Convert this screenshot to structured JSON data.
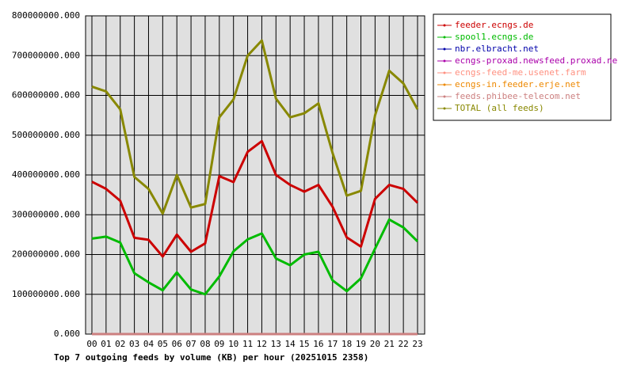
{
  "chart_data": {
    "type": "line",
    "title": "Top 7 outgoing feeds by volume (KB) per hour (20251015 2358)",
    "categories": [
      "00",
      "01",
      "02",
      "03",
      "04",
      "05",
      "06",
      "07",
      "08",
      "09",
      "10",
      "11",
      "12",
      "13",
      "14",
      "15",
      "16",
      "17",
      "18",
      "19",
      "20",
      "21",
      "22",
      "23"
    ],
    "series": [
      {
        "name": "feeder.ecngs.de",
        "color": "#cc0000",
        "values": [
          383000000,
          365000000,
          335000000,
          242000000,
          237000000,
          195000000,
          250000000,
          207000000,
          228000000,
          397000000,
          382000000,
          458000000,
          485000000,
          400000000,
          375000000,
          358000000,
          375000000,
          320000000,
          243000000,
          220000000,
          340000000,
          375000000,
          365000000,
          330000000
        ]
      },
      {
        "name": "spool1.ecngs.de",
        "color": "#00bb00",
        "values": [
          240000000,
          245000000,
          230000000,
          153000000,
          130000000,
          110000000,
          155000000,
          112000000,
          100000000,
          145000000,
          208000000,
          238000000,
          253000000,
          190000000,
          173000000,
          200000000,
          207000000,
          135000000,
          108000000,
          140000000,
          215000000,
          288000000,
          268000000,
          233000000
        ]
      },
      {
        "name": "nbr.elbracht.net",
        "color": "#0000aa",
        "values": [
          0,
          0,
          0,
          0,
          0,
          0,
          0,
          0,
          0,
          0,
          0,
          0,
          0,
          0,
          0,
          0,
          0,
          0,
          0,
          0,
          0,
          0,
          0,
          0
        ]
      },
      {
        "name": "ecngs-proxad.newsfeed.proxad.net",
        "color": "#aa00aa",
        "values": [
          0,
          0,
          0,
          0,
          0,
          0,
          0,
          0,
          0,
          0,
          0,
          0,
          0,
          0,
          0,
          0,
          0,
          0,
          0,
          0,
          0,
          0,
          0,
          0
        ]
      },
      {
        "name": "ecngs-feed-me.usenet.farm",
        "color": "#ff9080",
        "values": [
          0,
          0,
          0,
          0,
          0,
          0,
          0,
          0,
          0,
          0,
          0,
          0,
          0,
          0,
          0,
          0,
          0,
          0,
          0,
          0,
          0,
          0,
          0,
          0
        ]
      },
      {
        "name": "ecngs-in.feeder.erje.net",
        "color": "#ee8800",
        "values": [
          0,
          0,
          0,
          0,
          0,
          0,
          0,
          0,
          0,
          0,
          0,
          0,
          0,
          0,
          0,
          0,
          0,
          0,
          0,
          0,
          0,
          0,
          0,
          0
        ]
      },
      {
        "name": "feeds.phibee-telecom.net",
        "color": "#cc8080",
        "values": [
          0,
          0,
          0,
          0,
          0,
          0,
          0,
          0,
          0,
          0,
          0,
          0,
          0,
          0,
          0,
          0,
          0,
          0,
          0,
          0,
          0,
          0,
          0,
          0
        ]
      },
      {
        "name": "TOTAL (all feeds)",
        "color": "#888800",
        "values": [
          622000000,
          610000000,
          565000000,
          395000000,
          365000000,
          303000000,
          400000000,
          318000000,
          327000000,
          545000000,
          590000000,
          700000000,
          738000000,
          592000000,
          545000000,
          555000000,
          580000000,
          455000000,
          348000000,
          360000000,
          550000000,
          662000000,
          630000000,
          565000000
        ]
      }
    ],
    "ylim": [
      0,
      800000000
    ],
    "yticks": [
      {
        "value": 0,
        "label": "0.000"
      },
      {
        "value": 100000000,
        "label": "100000000.000"
      },
      {
        "value": 200000000,
        "label": "200000000.000"
      },
      {
        "value": 300000000,
        "label": "300000000.000"
      },
      {
        "value": 400000000,
        "label": "400000000.000"
      },
      {
        "value": 500000000,
        "label": "500000000.000"
      },
      {
        "value": 600000000,
        "label": "600000000.000"
      },
      {
        "value": 700000000,
        "label": "700000000.000"
      },
      {
        "value": 800000000,
        "label": "800000000.000"
      }
    ],
    "grid": true,
    "legend": "right"
  }
}
